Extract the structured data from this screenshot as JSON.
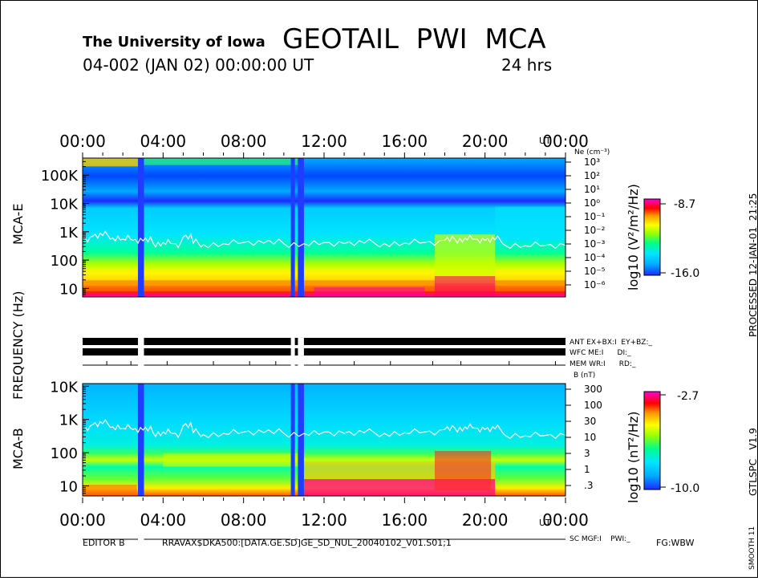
{
  "header": {
    "institution": "The University of Iowa",
    "instrument": "GEOTAIL  PWI  MCA",
    "date_line": "04-002 (JAN 02) 00:00:00 UT",
    "duration": "24 hrs"
  },
  "side": {
    "processed": "PROCESSED 12-JAN-01  21:25",
    "version": "GTLSPC   V1.9",
    "smooth": "SMOOTH 11"
  },
  "axis_labels": {
    "frequency": "FREQUENCY (Hz)",
    "mca_e": "MCA-E",
    "mca_b": "MCA-B",
    "ut": "UT"
  },
  "time_ticks": [
    "00:00",
    "04:00",
    "08:00",
    "12:00",
    "16:00",
    "20:00",
    "00:00"
  ],
  "status_labels": {
    "row1": "ANT EX+BX:I  EY+BZ:_",
    "row2": "WFC ME:I      DI:_",
    "row3": "MEM WR:I      RD:_",
    "row4": "SC MGF:I    PWI:_"
  },
  "footer": {
    "editor": "EDITOR B",
    "path": "RRAVAX$DKA500:[DATA.GE.SD]GE_SD_NUL_20040102_V01.S01;1",
    "fg": "FG:WBW"
  },
  "colorbars": {
    "e": {
      "label": "log10 (V²/m²/Hz)",
      "max": "-8.7",
      "min": "-16.0"
    },
    "b": {
      "label": "log10 (nT²/Hz)",
      "max": "-2.7",
      "min": "-10.0"
    }
  },
  "colors": {
    "scale": [
      "#1e2bff",
      "#00aaff",
      "#00e5ff",
      "#00ff88",
      "#99ff00",
      "#ffff00",
      "#ff9900",
      "#ff0000",
      "#ff00cc"
    ],
    "gap": "#1f3cff",
    "trace": "#ffffff"
  },
  "chart_data": [
    {
      "type": "heatmap",
      "title": "MCA-E",
      "xlabel": "UT",
      "ylabel": "FREQUENCY (Hz)",
      "xlim": [
        0,
        24
      ],
      "ylim": [
        5,
        400000
      ],
      "yscale": "log",
      "yticks": [
        "10",
        "100",
        "1K",
        "10K",
        "100K"
      ],
      "right_axis_title": "Ne (cm⁻³)",
      "right_ticks": [
        "10³",
        "10²",
        "10¹",
        "10⁰",
        "10⁻¹",
        "10⁻²",
        "10⁻³",
        "10⁻⁴",
        "10⁻⁵",
        "10⁻⁶"
      ],
      "data_gaps_hours": [
        [
          2.75,
          3.05
        ],
        [
          10.35,
          10.55
        ],
        [
          10.7,
          11.0
        ]
      ],
      "colorbar": {
        "label": "log10 (V²/m²/Hz)",
        "range": [
          -16.0,
          -8.7
        ]
      },
      "trace_hz": [
        [
          0.0,
          600
        ],
        [
          0.5,
          700
        ],
        [
          1.0,
          750
        ],
        [
          1.5,
          600
        ],
        [
          2.0,
          550
        ],
        [
          2.5,
          500
        ],
        [
          3.0,
          480
        ],
        [
          3.5,
          400
        ],
        [
          4.0,
          420
        ],
        [
          4.5,
          380
        ],
        [
          5.0,
          650
        ],
        [
          5.5,
          400
        ],
        [
          6.0,
          350
        ],
        [
          7.0,
          380
        ],
        [
          8.0,
          420
        ],
        [
          9.0,
          400
        ],
        [
          10.0,
          380
        ],
        [
          11.0,
          380
        ],
        [
          12.0,
          420
        ],
        [
          13.0,
          380
        ],
        [
          14.0,
          400
        ],
        [
          15.0,
          380
        ],
        [
          16.0,
          400
        ],
        [
          17.0,
          420
        ],
        [
          18.0,
          500
        ],
        [
          18.5,
          550
        ],
        [
          19.0,
          600
        ],
        [
          19.5,
          550
        ],
        [
          20.0,
          500
        ],
        [
          20.5,
          520
        ],
        [
          21.0,
          330
        ],
        [
          22.0,
          320
        ],
        [
          23.0,
          330
        ],
        [
          24.0,
          330
        ]
      ]
    },
    {
      "type": "heatmap",
      "title": "MCA-B",
      "xlabel": "UT",
      "ylabel": "FREQUENCY (Hz)",
      "xlim": [
        0,
        24
      ],
      "ylim": [
        5,
        12000
      ],
      "yscale": "log",
      "yticks": [
        "10",
        "100",
        "1K",
        "10K"
      ],
      "right_axis_title": "B (nT)",
      "right_ticks": [
        "300",
        "100",
        "30",
        "10",
        "3",
        "1",
        ".3"
      ],
      "data_gaps_hours": [
        [
          2.75,
          3.05
        ],
        [
          10.35,
          10.55
        ],
        [
          10.7,
          11.0
        ]
      ],
      "colorbar": {
        "label": "log10 (nT²/Hz)",
        "range": [
          -10.0,
          -2.7
        ]
      },
      "trace_hz": [
        [
          0.0,
          600
        ],
        [
          0.5,
          700
        ],
        [
          1.0,
          750
        ],
        [
          1.5,
          600
        ],
        [
          2.0,
          550
        ],
        [
          2.5,
          500
        ],
        [
          3.0,
          480
        ],
        [
          3.5,
          400
        ],
        [
          4.0,
          420
        ],
        [
          4.5,
          380
        ],
        [
          5.0,
          650
        ],
        [
          5.5,
          400
        ],
        [
          6.0,
          350
        ],
        [
          7.0,
          380
        ],
        [
          8.0,
          420
        ],
        [
          9.0,
          400
        ],
        [
          10.0,
          380
        ],
        [
          11.0,
          380
        ],
        [
          12.0,
          420
        ],
        [
          13.0,
          380
        ],
        [
          14.0,
          400
        ],
        [
          15.0,
          380
        ],
        [
          16.0,
          400
        ],
        [
          17.0,
          420
        ],
        [
          18.0,
          500
        ],
        [
          18.5,
          550
        ],
        [
          19.0,
          600
        ],
        [
          19.5,
          550
        ],
        [
          20.0,
          500
        ],
        [
          20.5,
          520
        ],
        [
          21.0,
          330
        ],
        [
          22.0,
          320
        ],
        [
          23.0,
          330
        ],
        [
          24.0,
          330
        ]
      ]
    }
  ]
}
